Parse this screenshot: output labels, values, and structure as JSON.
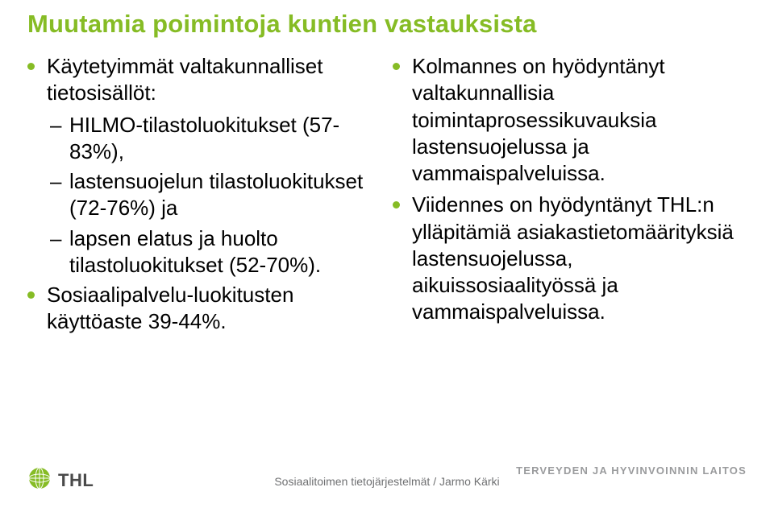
{
  "colors": {
    "accent": "#86bc25",
    "bullet2": "#000000",
    "title": "#86bc25",
    "body": "#000000",
    "footer": "#6f7072",
    "footerRight": "#9a9b9d",
    "bg": "#ffffff"
  },
  "typography": {
    "title_fontsize": 31,
    "body_fontsize": 26,
    "sub_fontsize": 26,
    "footer_fontsize": 14,
    "title_weight": 700,
    "body_weight": 400
  },
  "title": "Muutamia poimintoja kuntien vastauksista",
  "left": {
    "items": [
      {
        "text": "Käytetyimmät valtakunnalliset tietosisällöt:",
        "sub": [
          "HILMO-tilastoluokitukset (57-83%),",
          "lastensuojelun tilastoluokitukset (72-76%) ja",
          "lapsen elatus ja huolto tilastoluokitukset (52-70%)."
        ]
      },
      {
        "text": "Sosiaalipalvelu-luokitusten käyttöaste 39-44%."
      }
    ]
  },
  "right": {
    "items": [
      {
        "text": "Kolmannes on hyödyntänyt valtakunnallisia toimintaprosessikuvauksia lastensuojelussa ja vammaispalveluissa."
      },
      {
        "text": "Viidennes on hyödyntänyt THL:n ylläpitämiä asiakastietomäärityksiä lastensuojelussa, aikuissosiaalityössä ja vammaispalveluissa."
      }
    ]
  },
  "footer": {
    "thl_text": "THL",
    "center": "Sosiaalitoimen tietojärjestelmät / Jarmo Kärki",
    "right_top": "TERVEYDEN JA HYVINVOINNIN LAITOS",
    "right_bot": ""
  }
}
